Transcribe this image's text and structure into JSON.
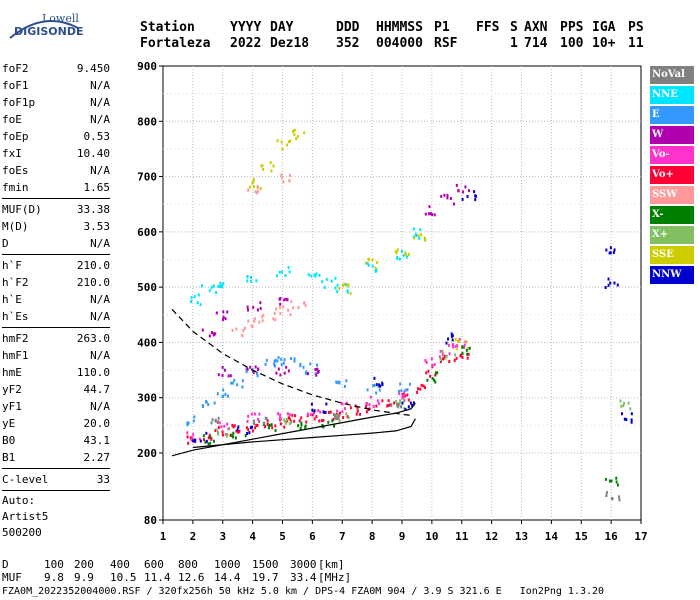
{
  "logo": {
    "line1": "Lowell",
    "line2": "DIGISONDE"
  },
  "header": {
    "labels": [
      "Station",
      "YYYY",
      "DAY",
      "DDD",
      "HHMMSS",
      "P1",
      "FFS",
      "S",
      "AXN",
      "PPS",
      "IGA",
      "PS"
    ],
    "values": [
      "Fortaleza",
      "2022",
      "Dez18",
      "352",
      "004000",
      "RSF",
      "",
      "1",
      "714",
      "100",
      "10+",
      "11"
    ]
  },
  "params": {
    "group1": [
      {
        "k": "foF2",
        "v": "9.450"
      },
      {
        "k": "foF1",
        "v": "N/A"
      },
      {
        "k": "foF1p",
        "v": "N/A"
      },
      {
        "k": "foE",
        "v": "N/A"
      },
      {
        "k": "foEp",
        "v": "0.53"
      },
      {
        "k": "fxI",
        "v": "10.40"
      },
      {
        "k": "foEs",
        "v": "N/A"
      },
      {
        "k": "fmin",
        "v": "1.65"
      }
    ],
    "group2": [
      {
        "k": "MUF(D)",
        "v": "33.38"
      },
      {
        "k": "M(D)",
        "v": "3.53"
      },
      {
        "k": "D",
        "v": "N/A"
      }
    ],
    "group3": [
      {
        "k": "h`F",
        "v": "210.0"
      },
      {
        "k": "h`F2",
        "v": "210.0"
      },
      {
        "k": "h`E",
        "v": "N/A"
      },
      {
        "k": "h`Es",
        "v": "N/A"
      }
    ],
    "group4": [
      {
        "k": "hmF2",
        "v": "263.0"
      },
      {
        "k": "hmF1",
        "v": "N/A"
      },
      {
        "k": "hmE",
        "v": "110.0"
      },
      {
        "k": "yF2",
        "v": "44.7"
      },
      {
        "k": "yF1",
        "v": "N/A"
      },
      {
        "k": "yE",
        "v": "20.0"
      },
      {
        "k": "B0",
        "v": "43.1"
      },
      {
        "k": "B1",
        "v": "2.27"
      }
    ],
    "group5": [
      {
        "k": "C-level",
        "v": "33"
      }
    ],
    "auto": [
      "Auto:",
      "Artist5",
      "500200"
    ]
  },
  "legend": [
    {
      "label": "NoVal",
      "color": "#808080"
    },
    {
      "label": "NNE",
      "color": "#00e5ff"
    },
    {
      "label": "E",
      "color": "#3399ff"
    },
    {
      "label": "W",
      "color": "#b000b0"
    },
    {
      "label": "Vo-",
      "color": "#ff33cc"
    },
    {
      "label": "Vo+",
      "color": "#ff0033"
    },
    {
      "label": "SSW",
      "color": "#ff9999"
    },
    {
      "label": "X-",
      "color": "#008000"
    },
    {
      "label": "X+",
      "color": "#80c060"
    },
    {
      "label": "SSE",
      "color": "#cccc00"
    },
    {
      "label": "NNW",
      "color": "#0000cc"
    }
  ],
  "footer": {
    "d_label": "D",
    "d_values": [
      "100",
      "200",
      "400",
      "600",
      "800",
      "1000",
      "1500",
      "3000",
      "[km]"
    ],
    "muf_label": "MUF",
    "muf_values": [
      "9.8",
      "9.9",
      "10.5",
      "11.4",
      "12.6",
      "14.4",
      "19.7",
      "33.4",
      "[MHz]"
    ],
    "file_line": "FZA0M_2022352004000.RSF / 320fx256h 50 kHz 5.0 km / DPS-4 FZA0M 904 / 3.9 S 321.6 E   Ion2Png 1.3.20"
  },
  "chart_data": {
    "type": "scatter",
    "title": "",
    "xlabel": "",
    "ylabel": "",
    "xlim": [
      1,
      17
    ],
    "ylim": [
      80,
      900
    ],
    "x_ticks": [
      1,
      2,
      3,
      4,
      5,
      6,
      7,
      8,
      9,
      10,
      11,
      12,
      13,
      14,
      15,
      16,
      17
    ],
    "y_ticks": [
      80,
      200,
      300,
      400,
      500,
      600,
      700,
      800,
      900
    ],
    "grid": true,
    "legend_position": "right",
    "series": [
      {
        "color": "#ff0033",
        "points": [
          [
            2,
            225
          ],
          [
            2.5,
            235
          ],
          [
            3,
            240
          ],
          [
            3.5,
            245
          ],
          [
            4,
            250
          ],
          [
            4.5,
            255
          ],
          [
            5,
            258
          ],
          [
            5.5,
            262
          ],
          [
            6,
            265
          ],
          [
            6.5,
            270
          ],
          [
            7,
            275
          ],
          [
            7.5,
            280
          ],
          [
            8,
            285
          ],
          [
            8.5,
            290
          ],
          [
            9,
            300
          ],
          [
            9.5,
            320
          ],
          [
            10,
            350
          ],
          [
            10.5,
            370
          ],
          [
            11,
            380
          ]
        ]
      },
      {
        "color": "#ff33cc",
        "points": [
          [
            2,
            235
          ],
          [
            3,
            255
          ],
          [
            4,
            265
          ],
          [
            5,
            270
          ],
          [
            6,
            275
          ],
          [
            7,
            285
          ],
          [
            8,
            295
          ],
          [
            9,
            310
          ],
          [
            10,
            370
          ],
          [
            10.5,
            390
          ],
          [
            11,
            400
          ]
        ]
      },
      {
        "color": "#3399ff",
        "points": [
          [
            2,
            260
          ],
          [
            2.5,
            290
          ],
          [
            3,
            310
          ],
          [
            3.5,
            330
          ],
          [
            4,
            350
          ],
          [
            4.5,
            365
          ],
          [
            5,
            370
          ],
          [
            5.5,
            365
          ],
          [
            6,
            355
          ],
          [
            7,
            330
          ],
          [
            8,
            320
          ],
          [
            9,
            320
          ]
        ]
      },
      {
        "color": "#00e5ff",
        "points": [
          [
            2,
            480
          ],
          [
            2.5,
            500
          ],
          [
            3,
            510
          ],
          [
            4,
            520
          ],
          [
            5,
            530
          ],
          [
            6,
            520
          ],
          [
            6.5,
            510
          ],
          [
            7,
            500
          ],
          [
            8,
            540
          ],
          [
            9,
            560
          ],
          [
            9.5,
            600
          ]
        ]
      },
      {
        "color": "#b000b0",
        "points": [
          [
            3,
            350
          ],
          [
            4,
            350
          ],
          [
            5,
            350
          ],
          [
            6,
            350
          ],
          [
            2.5,
            420
          ],
          [
            3,
            450
          ],
          [
            4,
            470
          ],
          [
            5,
            480
          ],
          [
            10,
            640
          ],
          [
            10.5,
            660
          ],
          [
            11,
            680
          ]
        ]
      },
      {
        "color": "#cccc00",
        "points": [
          [
            4,
            690
          ],
          [
            4.5,
            720
          ],
          [
            5,
            760
          ],
          [
            5.5,
            780
          ],
          [
            7,
            500
          ],
          [
            8,
            545
          ],
          [
            9,
            570
          ],
          [
            9.5,
            590
          ],
          [
            11,
            400
          ]
        ]
      },
      {
        "color": "#ff9999",
        "points": [
          [
            3.5,
            420
          ],
          [
            4,
            440
          ],
          [
            4.5,
            450
          ],
          [
            5,
            460
          ],
          [
            5.5,
            470
          ],
          [
            4,
            680
          ],
          [
            5,
            700
          ]
        ]
      },
      {
        "color": "#008000",
        "points": [
          [
            2.5,
            228
          ],
          [
            3.5,
            238
          ],
          [
            4.5,
            248
          ],
          [
            5.5,
            252
          ],
          [
            6.5,
            258
          ],
          [
            10,
            340
          ],
          [
            11,
            390
          ],
          [
            16,
            150
          ]
        ]
      },
      {
        "color": "#80c060",
        "points": [
          [
            3,
            242
          ],
          [
            5,
            255
          ],
          [
            7,
            268
          ],
          [
            9,
            290
          ],
          [
            10.5,
            380
          ],
          [
            16.5,
            290
          ]
        ]
      },
      {
        "color": "#0000cc",
        "points": [
          [
            2.2,
            230
          ],
          [
            3.7,
            245
          ],
          [
            6.2,
            285
          ],
          [
            8.2,
            330
          ],
          [
            9.2,
            290
          ],
          [
            10.7,
            410
          ],
          [
            11.2,
            670
          ],
          [
            16,
            510
          ],
          [
            16,
            570
          ],
          [
            16.5,
            265
          ]
        ]
      },
      {
        "color": "#808080",
        "points": [
          [
            2.8,
            260
          ],
          [
            4.2,
            262
          ],
          [
            6.8,
            272
          ],
          [
            8.8,
            290
          ],
          [
            16,
            125
          ]
        ]
      }
    ],
    "curves": {
      "solid_profile": [
        [
          1.3,
          195
        ],
        [
          2,
          205
        ],
        [
          3,
          215
        ],
        [
          4,
          225
        ],
        [
          5,
          235
        ],
        [
          6,
          245
        ],
        [
          7,
          255
        ],
        [
          8,
          265
        ],
        [
          8.8,
          272
        ],
        [
          9.3,
          280
        ],
        [
          9.45,
          290
        ]
      ],
      "solid_lower": [
        [
          2,
          210
        ],
        [
          4,
          220
        ],
        [
          6,
          228
        ],
        [
          7,
          232
        ],
        [
          8,
          236
        ],
        [
          8.8,
          240
        ],
        [
          9.3,
          248
        ],
        [
          9.45,
          262
        ]
      ],
      "dashed": [
        [
          1.3,
          460
        ],
        [
          2,
          420
        ],
        [
          3,
          380
        ],
        [
          4,
          350
        ],
        [
          5,
          325
        ],
        [
          6,
          305
        ],
        [
          7,
          290
        ],
        [
          8,
          278
        ],
        [
          9,
          270
        ],
        [
          9.3,
          268
        ]
      ]
    }
  }
}
